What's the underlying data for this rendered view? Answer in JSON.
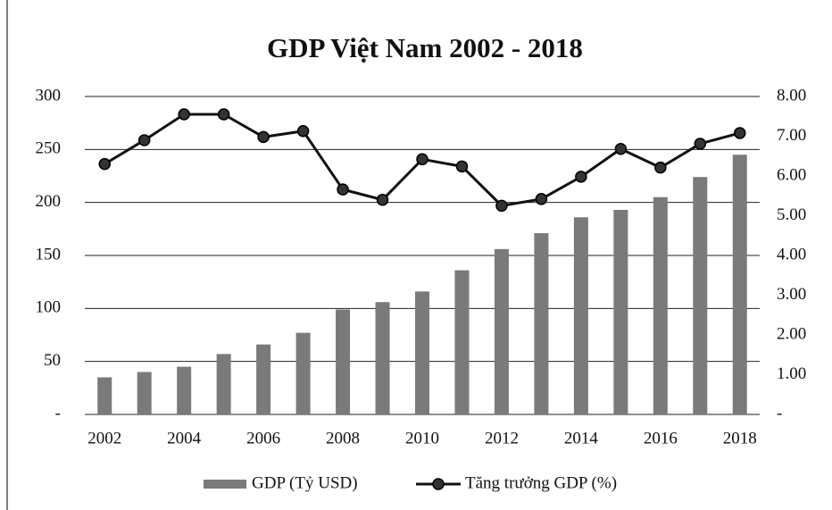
{
  "chart_data": {
    "type": "bar",
    "title": "GDP Việt Nam 2002 - 2018",
    "categories": [
      "2002",
      null,
      "2004",
      null,
      "2006",
      null,
      "2008",
      null,
      "2010",
      null,
      "2012",
      null,
      "2014",
      null,
      "2016",
      null,
      "2018"
    ],
    "series": [
      {
        "name": "GDP (Tỷ USD)",
        "type": "bar",
        "axis": "y",
        "color": "#7a7a7a",
        "values": [
          35,
          40,
          45,
          57,
          66,
          77,
          99,
          106,
          116,
          136,
          156,
          171,
          186,
          193,
          205,
          224,
          245
        ]
      },
      {
        "name": "Tăng trưởng GDP (%)",
        "type": "line",
        "axis": "y2",
        "color": "#111111",
        "values": [
          6.3,
          6.9,
          7.55,
          7.55,
          6.98,
          7.13,
          5.66,
          5.4,
          6.42,
          6.24,
          5.25,
          5.42,
          5.98,
          6.68,
          6.21,
          6.81,
          7.08
        ]
      }
    ],
    "ylim": [
      0,
      300
    ],
    "yticks": [
      {
        "value": 0,
        "label": "-"
      },
      50,
      100,
      150,
      200,
      250,
      300
    ],
    "y2lim": [
      0,
      8
    ],
    "y2ticks": [
      {
        "value": 0,
        "label": "-"
      },
      {
        "value": 1,
        "label": "1.00"
      },
      {
        "value": 2,
        "label": "2.00"
      },
      {
        "value": 3,
        "label": "3.00"
      },
      {
        "value": 4,
        "label": "4.00"
      },
      {
        "value": 5,
        "label": "5.00"
      },
      {
        "value": 6,
        "label": "6.00"
      },
      {
        "value": 7,
        "label": "7.00"
      },
      {
        "value": 8,
        "label": "8.00"
      }
    ],
    "grid": true,
    "legend": "bottom"
  }
}
